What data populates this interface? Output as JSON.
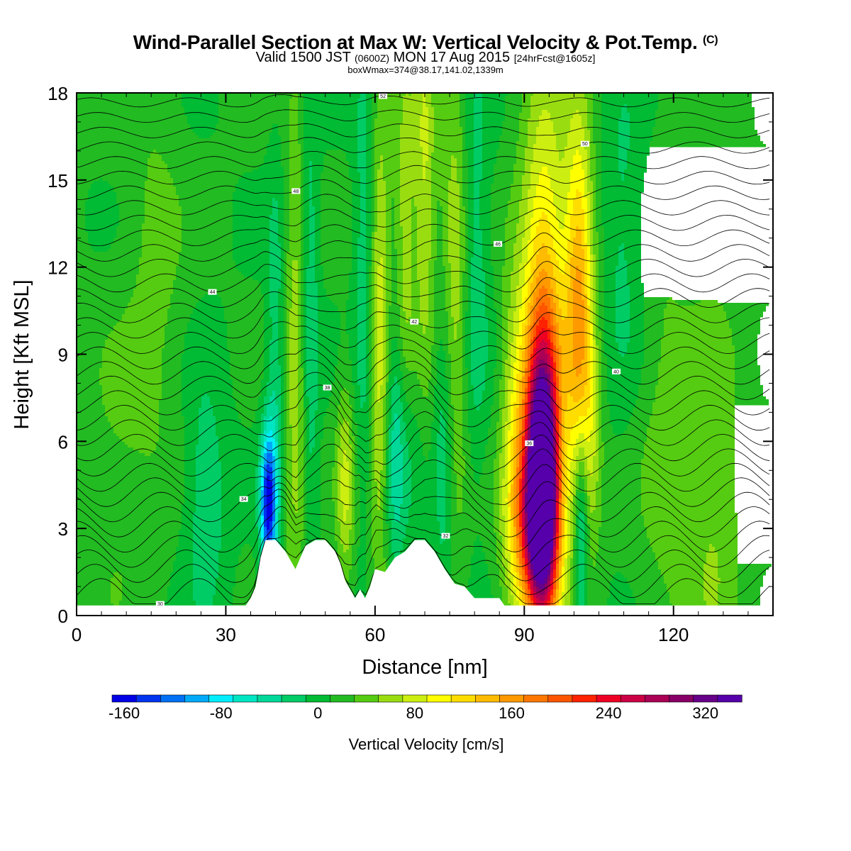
{
  "header": {
    "title_main": "Wind-Parallel Section at Max W: Vertical Velocity & Pot.Temp.",
    "title_copyright": "(C)",
    "valid_prefix": "Valid 1500 JST",
    "valid_utc": "(0600Z)",
    "valid_date": "MON 17 Aug 2015",
    "forecast": "[24hrFcst@1605z]",
    "box_info": "boxWmax=374@38.17,141.02,1339m"
  },
  "chart_data": {
    "type": "heatmap",
    "xlabel": "Distance [nm]",
    "ylabel": "Height [Kft MSL]",
    "xlim": [
      0,
      140
    ],
    "ylim": [
      0,
      18
    ],
    "x_ticks": [
      0,
      30,
      60,
      90,
      120
    ],
    "y_ticks": [
      0,
      3,
      6,
      9,
      12,
      15,
      18
    ],
    "colorbar": {
      "title": "Vertical Velocity [cm/s]",
      "min": -170,
      "max": 350,
      "step": 20,
      "tick_values": [
        -160,
        -80,
        0,
        80,
        160,
        240,
        320
      ],
      "tick_labels": [
        "-160",
        "-80",
        "0",
        "80",
        "160",
        "240",
        "320"
      ],
      "colors": [
        "#0000e6",
        "#0033ee",
        "#0070f5",
        "#00aaf8",
        "#00eeff",
        "#00e6c2",
        "#00d89a",
        "#00cc66",
        "#00bb33",
        "#22bb22",
        "#55cc11",
        "#99dd11",
        "#ccee11",
        "#ffff00",
        "#ffdd00",
        "#ffbb00",
        "#ff9900",
        "#ff7700",
        "#ff5500",
        "#ff2200",
        "#ee0022",
        "#cc0044",
        "#aa0055",
        "#880066",
        "#660088",
        "#5500aa"
      ]
    },
    "terrain_kft": [
      [
        0,
        0.35
      ],
      [
        34,
        0.35
      ],
      [
        35,
        0.6
      ],
      [
        36,
        1.0
      ],
      [
        37,
        2.0
      ],
      [
        38,
        2.6
      ],
      [
        40,
        2.6
      ],
      [
        42,
        2.2
      ],
      [
        44,
        1.6
      ],
      [
        46,
        2.4
      ],
      [
        48,
        2.6
      ],
      [
        50,
        2.6
      ],
      [
        52,
        2.2
      ],
      [
        53,
        1.8
      ],
      [
        54,
        1.2
      ],
      [
        55,
        0.9
      ],
      [
        56,
        0.6
      ],
      [
        57,
        0.9
      ],
      [
        58,
        0.6
      ],
      [
        59,
        1.0
      ],
      [
        60,
        1.6
      ],
      [
        62,
        1.5
      ],
      [
        64,
        2.0
      ],
      [
        66,
        2.2
      ],
      [
        68,
        2.6
      ],
      [
        70,
        2.6
      ],
      [
        72,
        2.2
      ],
      [
        74,
        1.6
      ],
      [
        76,
        1.1
      ],
      [
        78,
        1.0
      ],
      [
        79,
        0.8
      ],
      [
        80,
        0.6
      ],
      [
        82,
        0.6
      ],
      [
        85,
        0.6
      ],
      [
        86,
        0.35
      ],
      [
        140,
        0.35
      ]
    ],
    "vertical_velocity_features": [
      {
        "x": 93.5,
        "y": 4.5,
        "sx": 2.2,
        "sy": 3.0,
        "value": 374
      },
      {
        "x": 94,
        "y": 9,
        "sx": 3.2,
        "sy": 6,
        "value": 140
      },
      {
        "x": 92,
        "y": 3,
        "sx": 3.5,
        "sy": 2.0,
        "value": 110
      },
      {
        "x": 101,
        "y": 11,
        "sx": 2.0,
        "sy": 4.5,
        "value": 130
      },
      {
        "x": 103,
        "y": 6,
        "sx": 1.8,
        "sy": 3.0,
        "value": 50
      },
      {
        "x": 101.5,
        "y": 3.0,
        "sx": 1.0,
        "sy": 2.5,
        "value": -90
      },
      {
        "x": 38.5,
        "y": 3.8,
        "sx": 1.1,
        "sy": 1.8,
        "value": -165
      },
      {
        "x": 40,
        "y": 8,
        "sx": 1.2,
        "sy": 5,
        "value": -40
      },
      {
        "x": 44,
        "y": 8,
        "sx": 1.5,
        "sy": 7,
        "value": 50
      },
      {
        "x": 47,
        "y": 10,
        "sx": 1.2,
        "sy": 6,
        "value": -40
      },
      {
        "x": 65,
        "y": 6,
        "sx": 2.2,
        "sy": 3.5,
        "value": -90
      },
      {
        "x": 66,
        "y": 10,
        "sx": 1.5,
        "sy": 6,
        "value": 70
      },
      {
        "x": 61,
        "y": 9,
        "sx": 1.5,
        "sy": 6,
        "value": 80
      },
      {
        "x": 58,
        "y": 12,
        "sx": 1.5,
        "sy": 6,
        "value": -40
      },
      {
        "x": 76,
        "y": 11,
        "sx": 2.0,
        "sy": 6,
        "value": 60
      },
      {
        "x": 74,
        "y": 6,
        "sx": 1.5,
        "sy": 4,
        "value": -50
      },
      {
        "x": 80,
        "y": 12,
        "sx": 2.0,
        "sy": 5,
        "value": -40
      },
      {
        "x": 88,
        "y": 6,
        "sx": 2.0,
        "sy": 4,
        "value": 60
      },
      {
        "x": 118,
        "y": 6,
        "sx": 4,
        "sy": 6,
        "value": 25
      },
      {
        "x": 128,
        "y": 4,
        "sx": 4,
        "sy": 5,
        "value": 40
      },
      {
        "x": 110,
        "y": 13,
        "sx": 3,
        "sy": 4,
        "value": -30
      },
      {
        "x": 8,
        "y": 5,
        "sx": 5,
        "sy": 4,
        "value": 20
      },
      {
        "x": 26,
        "y": 4,
        "sx": 3,
        "sy": 3,
        "value": -40
      },
      {
        "x": 16,
        "y": 12,
        "sx": 4,
        "sy": 5,
        "value": 25
      },
      {
        "x": 54,
        "y": 4.5,
        "sx": 1.3,
        "sy": 2.5,
        "value": 60
      },
      {
        "x": 70,
        "y": 15,
        "sx": 1.5,
        "sy": 5,
        "value": 60
      }
    ],
    "potential_temperature_contours": {
      "interval_K": 1,
      "labeled_values": [
        "30",
        "32",
        "34",
        "36",
        "38",
        "40",
        "42",
        "44",
        "46",
        "48",
        "50",
        "52"
      ]
    }
  }
}
